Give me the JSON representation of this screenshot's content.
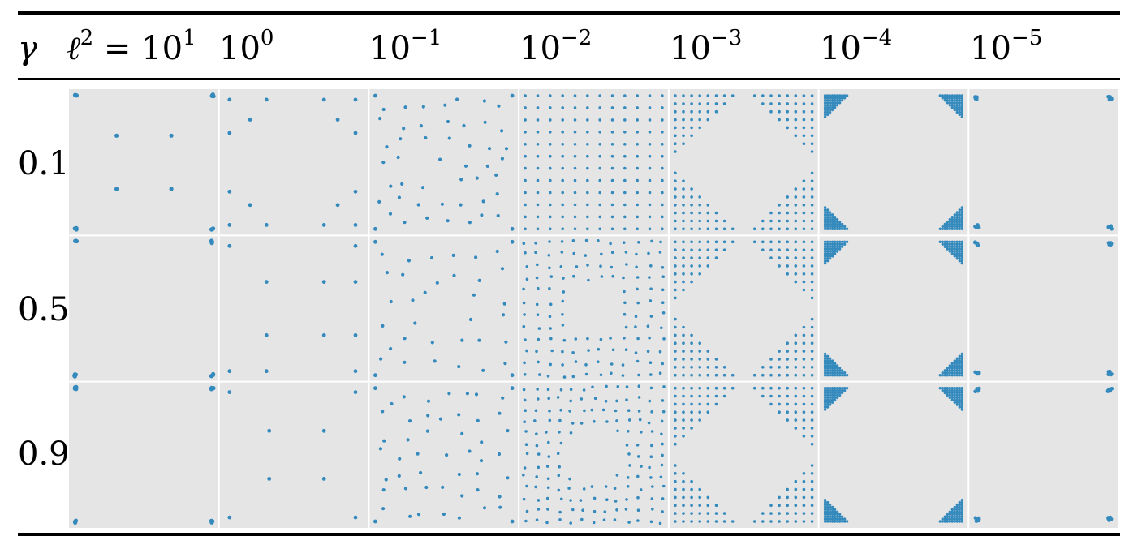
{
  "header": {
    "row_header": "γ",
    "columns": [
      {
        "base": "10",
        "exp": "1",
        "prefix_var": "ℓ",
        "prefix_exp": "2"
      },
      {
        "base": "10",
        "exp": "0"
      },
      {
        "base": "10",
        "exp": "−1"
      },
      {
        "base": "10",
        "exp": "−2"
      },
      {
        "base": "10",
        "exp": "−3"
      },
      {
        "base": "10",
        "exp": "−4"
      },
      {
        "base": "10",
        "exp": "−5"
      }
    ]
  },
  "rows": [
    "0.1",
    "0.5",
    "0.9"
  ],
  "colors": {
    "panel_bg": "#e5e5e5",
    "point": "#348abd",
    "grid_line": "#ffffff",
    "rule": "#000000"
  },
  "chart_data": {
    "type": "scatter",
    "description_level": "grid of scatter panels",
    "row_param": "γ",
    "col_param": "ℓ²",
    "row_values": [
      0.1,
      0.5,
      0.9
    ],
    "col_values": [
      10,
      1,
      0.1,
      0.01,
      0.001,
      0.0001,
      1e-05
    ],
    "xlim": [
      0,
      1
    ],
    "ylim": [
      0,
      1
    ],
    "grid": false,
    "panels": [
      [
        {
          "pattern": "corners_inner",
          "inner": [
            [
              0.3,
              0.7
            ],
            [
              0.7,
              0.7
            ],
            [
              0.3,
              0.3
            ],
            [
              0.7,
              0.3
            ]
          ]
        },
        {
          "pattern": "scatter_points",
          "points": [
            [
              0.03,
              0.97
            ],
            [
              0.3,
              0.97
            ],
            [
              0.72,
              0.97
            ],
            [
              0.95,
              0.97
            ],
            [
              0.18,
              0.82
            ],
            [
              0.82,
              0.82
            ],
            [
              0.03,
              0.72
            ],
            [
              0.95,
              0.72
            ],
            [
              0.03,
              0.28
            ],
            [
              0.95,
              0.28
            ],
            [
              0.18,
              0.18
            ],
            [
              0.82,
              0.18
            ],
            [
              0.03,
              0.03
            ],
            [
              0.3,
              0.03
            ],
            [
              0.72,
              0.03
            ],
            [
              0.95,
              0.03
            ]
          ]
        },
        {
          "pattern": "sparse_grid",
          "n": 7
        },
        {
          "pattern": "regular_grid",
          "n": 12
        },
        {
          "pattern": "corner_triangles",
          "n": 8
        },
        {
          "pattern": "corner_clusters",
          "n": 10
        },
        {
          "pattern": "corner_dots"
        }
      ],
      [
        {
          "pattern": "corners_only"
        },
        {
          "pattern": "scatter_points",
          "points": [
            [
              0.03,
              0.97
            ],
            [
              0.95,
              0.97
            ],
            [
              0.3,
              0.7
            ],
            [
              0.72,
              0.7
            ],
            [
              0.95,
              0.7
            ],
            [
              0.3,
              0.3
            ],
            [
              0.72,
              0.3
            ],
            [
              0.95,
              0.3
            ],
            [
              0.03,
              0.03
            ],
            [
              0.3,
              0.03
            ],
            [
              0.95,
              0.03
            ]
          ]
        },
        {
          "pattern": "sparse_grid",
          "n": 6
        },
        {
          "pattern": "hollow_grid",
          "n": 12
        },
        {
          "pattern": "corner_triangles",
          "n": 8
        },
        {
          "pattern": "corner_clusters",
          "n": 10
        },
        {
          "pattern": "corner_dots"
        }
      ],
      [
        {
          "pattern": "corners_only"
        },
        {
          "pattern": "scatter_points",
          "points": [
            [
              0.03,
              0.97
            ],
            [
              0.95,
              0.97
            ],
            [
              0.32,
              0.68
            ],
            [
              0.72,
              0.68
            ],
            [
              0.32,
              0.32
            ],
            [
              0.72,
              0.32
            ],
            [
              0.03,
              0.03
            ],
            [
              0.95,
              0.03
            ]
          ]
        },
        {
          "pattern": "sparse_grid",
          "n": 7
        },
        {
          "pattern": "hollow_grid",
          "n": 13
        },
        {
          "pattern": "corner_triangles",
          "n": 8
        },
        {
          "pattern": "corner_clusters",
          "n": 10
        },
        {
          "pattern": "corner_dots"
        }
      ]
    ]
  }
}
